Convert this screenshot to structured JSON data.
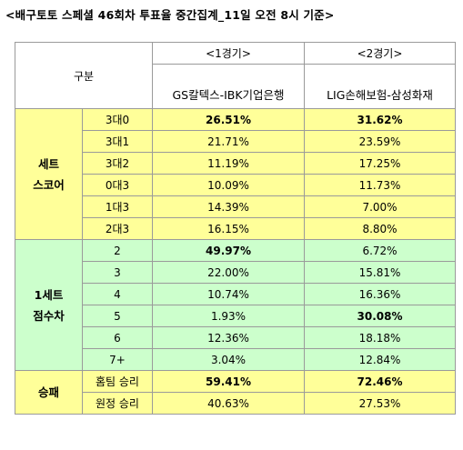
{
  "title": "<배구토토 스페셜 46회차 투표율 중간집계_11일 오전 8시 기준>",
  "header": {
    "label": "구분",
    "games": [
      {
        "game": "<1경기>",
        "teams": "GS칼텍스-IBK기업은행"
      },
      {
        "game": "<2경기>",
        "teams": "LIG손해보험-삼성화재"
      }
    ]
  },
  "groups": [
    {
      "name_lines": [
        "세트",
        "스코어"
      ],
      "color": "#ffff99",
      "rows": [
        {
          "cat": "3대0",
          "g1": "26.51%",
          "g2": "31.62%",
          "g1_bold": true,
          "g2_bold": true
        },
        {
          "cat": "3대1",
          "g1": "21.71%",
          "g2": "23.59%"
        },
        {
          "cat": "3대2",
          "g1": "11.19%",
          "g2": "17.25%"
        },
        {
          "cat": "0대3",
          "g1": "10.09%",
          "g2": "11.73%"
        },
        {
          "cat": "1대3",
          "g1": "14.39%",
          "g2": "7.00%"
        },
        {
          "cat": "2대3",
          "g1": "16.15%",
          "g2": "8.80%"
        }
      ]
    },
    {
      "name_lines": [
        "1세트",
        "점수차"
      ],
      "color": "#ccffcc",
      "rows": [
        {
          "cat": "2",
          "g1": "49.97%",
          "g2": "6.72%",
          "g1_bold": true
        },
        {
          "cat": "3",
          "g1": "22.00%",
          "g2": "15.81%"
        },
        {
          "cat": "4",
          "g1": "10.74%",
          "g2": "16.36%"
        },
        {
          "cat": "5",
          "g1": "1.93%",
          "g2": "30.08%",
          "g2_bold": true
        },
        {
          "cat": "6",
          "g1": "12.36%",
          "g2": "18.18%"
        },
        {
          "cat": "7+",
          "g1": "3.04%",
          "g2": "12.84%"
        }
      ]
    },
    {
      "name_lines": [
        "승패"
      ],
      "color": "#ffff99",
      "rows": [
        {
          "cat": "홈팀 승리",
          "g1": "59.41%",
          "g2": "72.46%",
          "g1_bold": true,
          "g2_bold": true
        },
        {
          "cat": "원정 승리",
          "g1": "40.63%",
          "g2": "27.53%"
        }
      ]
    }
  ]
}
